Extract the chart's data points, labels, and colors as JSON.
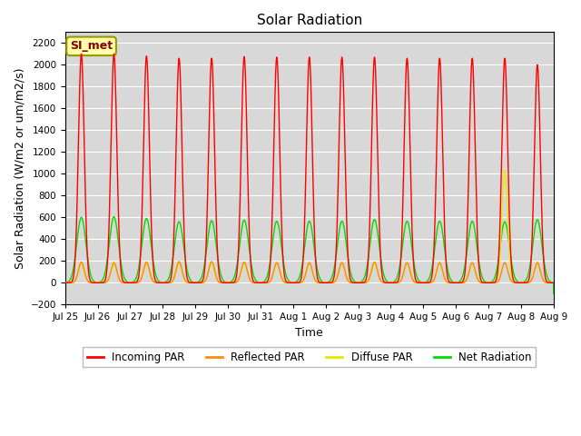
{
  "title": "Solar Radiation",
  "ylabel": "Solar Radiation (W/m2 or um/m2/s)",
  "xlabel": "Time",
  "ylim": [
    -200,
    2300
  ],
  "yticks": [
    -200,
    0,
    200,
    400,
    600,
    800,
    1000,
    1200,
    1400,
    1600,
    1800,
    2000,
    2200
  ],
  "bg_color": "#d8d8d8",
  "fig_color": "#ffffff",
  "station_label": "SI_met",
  "incoming_par_peaks": [
    2100,
    2100,
    2080,
    2060,
    2060,
    2075,
    2070,
    2070,
    2070,
    2070,
    2060,
    2060,
    2060,
    2060,
    2000
  ],
  "reflected_par_peaks": [
    190,
    185,
    190,
    195,
    195,
    190,
    185,
    185,
    185,
    190,
    185,
    185,
    185,
    185,
    185
  ],
  "diffuse_par_peaks": [
    170,
    170,
    175,
    175,
    175,
    175,
    175,
    175,
    175,
    175,
    175,
    175,
    175,
    1030,
    175
  ],
  "net_radiation_peaks": [
    600,
    605,
    590,
    560,
    570,
    575,
    565,
    565,
    565,
    580,
    565,
    565,
    565,
    560,
    580
  ],
  "net_radiation_night": -100,
  "colors": {
    "incoming": "#ff0000",
    "reflected": "#ff8c00",
    "diffuse": "#e8e800",
    "net": "#00dd00"
  },
  "x_tick_labels": [
    "Jul 25",
    "Jul 26",
    "Jul 27",
    "Jul 28",
    "Jul 29",
    "Jul 30",
    "Jul 31",
    "Aug 1",
    "Aug 2",
    "Aug 3",
    "Aug 4",
    "Aug 5",
    "Aug 6",
    "Aug 7",
    "Aug 8",
    "Aug 9"
  ],
  "legend_labels": [
    "Incoming PAR",
    "Reflected PAR",
    "Diffuse PAR",
    "Net Radiation"
  ]
}
